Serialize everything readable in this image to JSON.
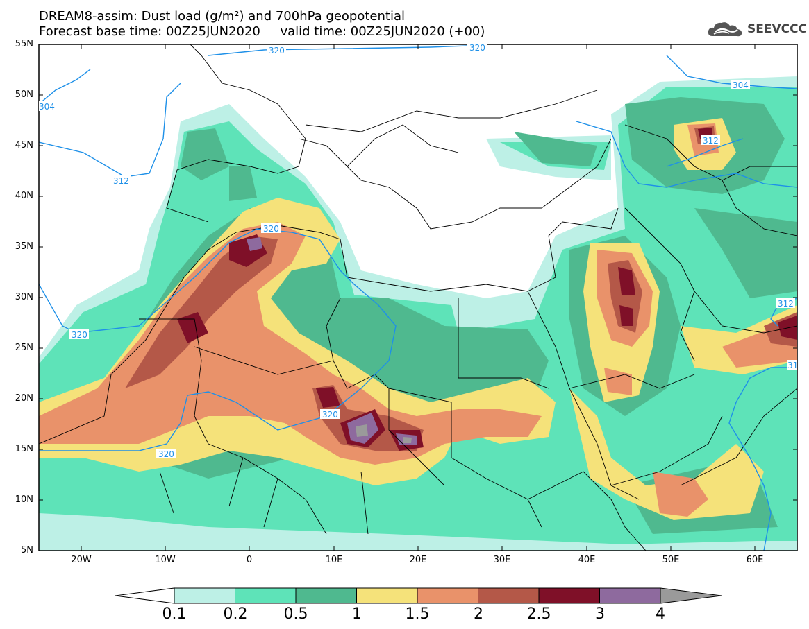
{
  "title": {
    "line1": "DREAM8-assim: Dust load (g/m²) and 700hPa geopotential",
    "line2": "Forecast base time: 00Z25JUN2020     valid time: 00Z25JUN2020 (+00)"
  },
  "logo": {
    "text": "SEEVCCC",
    "icon": "cloud-icon"
  },
  "axes": {
    "lat_labels": [
      "55N",
      "50N",
      "45N",
      "40N",
      "35N",
      "30N",
      "25N",
      "20N",
      "15N",
      "10N",
      "5N"
    ],
    "lon_labels": [
      "20W",
      "10W",
      "0",
      "10E",
      "20E",
      "30E",
      "40E",
      "50E",
      "60E"
    ]
  },
  "contours": {
    "labels": [
      "320",
      "320",
      "304",
      "312",
      "320",
      "320",
      "320",
      "312",
      "320",
      "312",
      "304",
      "31"
    ]
  },
  "colorbar": {
    "labels": [
      "0.1",
      "0.2",
      "0.5",
      "1",
      "1.5",
      "2",
      "2.5",
      "3",
      "4"
    ],
    "colors": [
      "#bdf0e6",
      "#5ee3b8",
      "#4fb98f",
      "#f5e27a",
      "#e9926a",
      "#b45848",
      "#7f1028",
      "#8e6a9e",
      "#9a9a9a"
    ]
  },
  "colors": {
    "geopotential_line": "#1e90e8",
    "borders": "#000000",
    "background": "#ffffff"
  }
}
